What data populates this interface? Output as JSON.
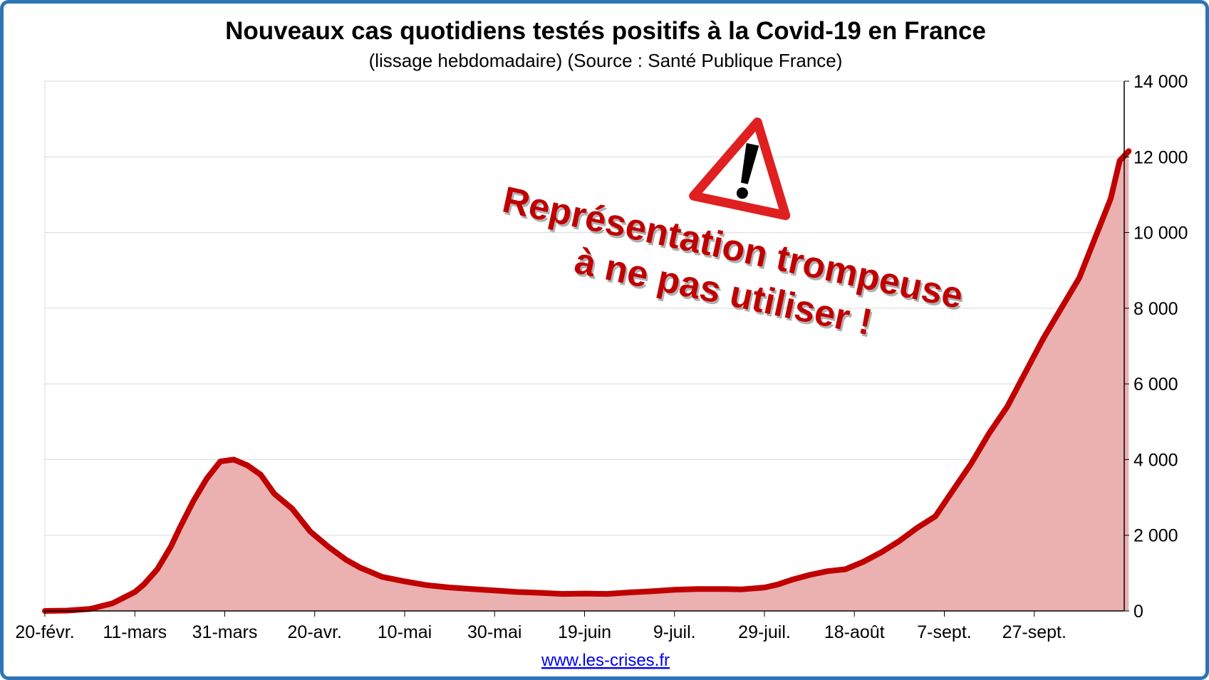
{
  "chart_data": {
    "type": "area",
    "title": "Nouveaux cas quotidiens testés positifs à la Covid-19 en France",
    "subtitle": "(lissage hebdomadaire) (Source : Santé Publique France)",
    "x_tick_labels": [
      "20-févr.",
      "11-mars",
      "31-mars",
      "20-avr.",
      "10-mai",
      "30-mai",
      "19-juin",
      "9-juil.",
      "29-juil.",
      "18-août",
      "7-sept.",
      "27-sept."
    ],
    "y_tick_labels": [
      "0",
      "2 000",
      "4 000",
      "6 000",
      "8 000",
      "10 000",
      "12 000",
      "14 000"
    ],
    "ylim": [
      0,
      14000
    ],
    "y_axis_side": "right",
    "grid": true,
    "line_color": "#c00000",
    "fill_color": "#ebb1b1",
    "series": [
      {
        "x": [
          0,
          5,
          10,
          15,
          20,
          22,
          25,
          28,
          30,
          33,
          36,
          39,
          42,
          45,
          48,
          51,
          55,
          59,
          63,
          67,
          70,
          75,
          80,
          85,
          90,
          95,
          100,
          105,
          110,
          115,
          120,
          125,
          130,
          135,
          140,
          145,
          150,
          155,
          160,
          163,
          166,
          170,
          174,
          178,
          182,
          186,
          190,
          194,
          198,
          202,
          206,
          210,
          214,
          218,
          222,
          226,
          230,
          234,
          237,
          239,
          241
        ],
        "y": [
          0,
          10,
          50,
          200,
          500,
          700,
          1100,
          1700,
          2200,
          2900,
          3500,
          3950,
          4000,
          3850,
          3600,
          3100,
          2700,
          2100,
          1700,
          1350,
          1150,
          900,
          780,
          680,
          620,
          580,
          540,
          500,
          480,
          450,
          460,
          450,
          490,
          520,
          560,
          580,
          580,
          570,
          620,
          700,
          820,
          950,
          1050,
          1100,
          1300,
          1550,
          1850,
          2200,
          2500,
          3200,
          3900,
          4700,
          5400,
          6300,
          7200,
          8000,
          8800,
          10000,
          10900,
          11900,
          12150
        ]
      }
    ],
    "annotation_lines": [
      "Représentation trompeuse",
      "à ne pas utiliser !"
    ],
    "source_link": "www.les-crises.fr"
  }
}
